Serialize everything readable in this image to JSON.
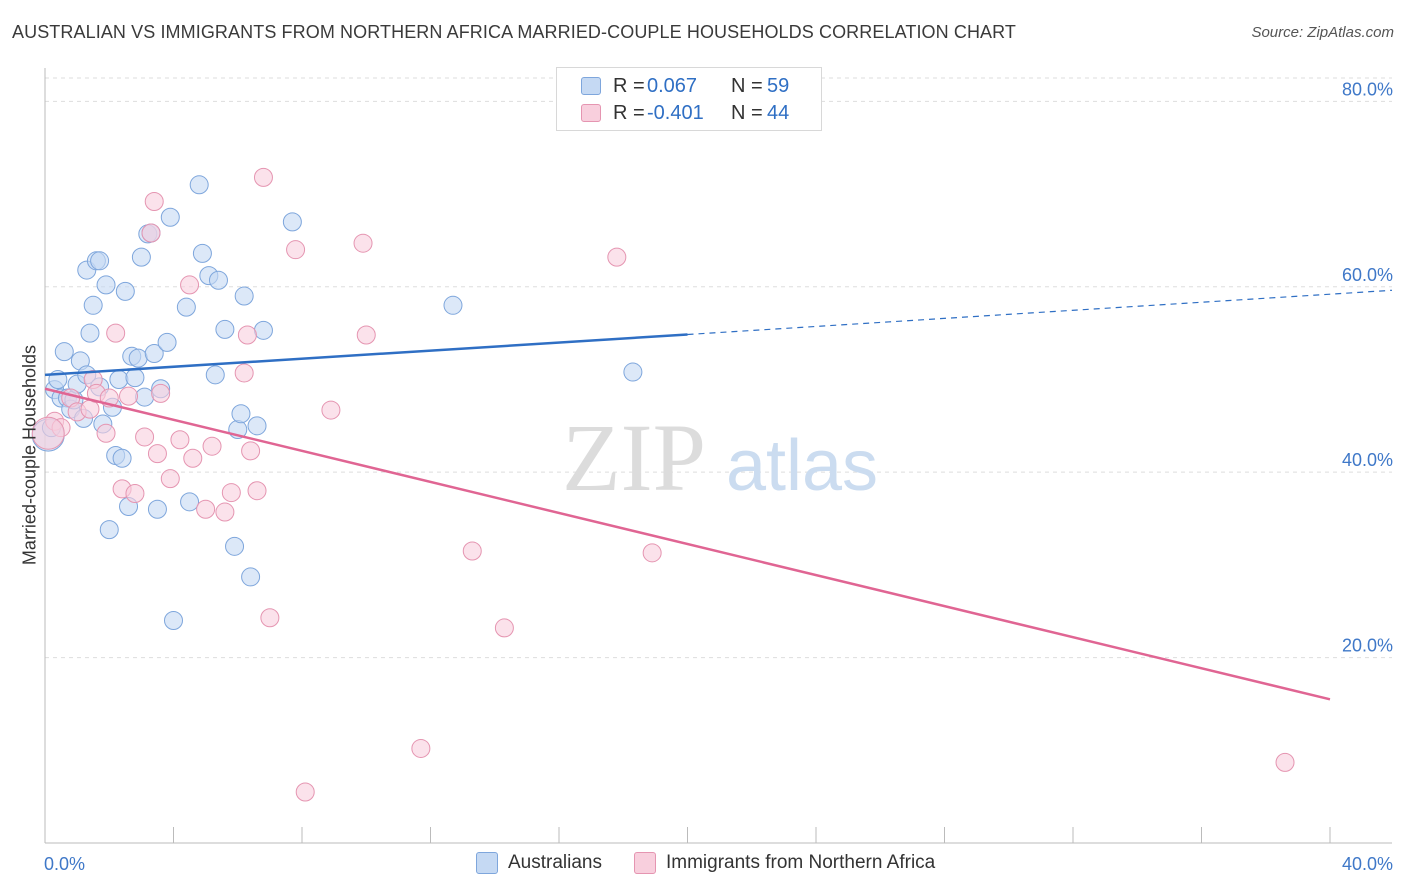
{
  "title": "AUSTRALIAN VS IMMIGRANTS FROM NORTHERN AFRICA MARRIED-COUPLE HOUSEHOLDS CORRELATION CHART",
  "source": "Source: ZipAtlas.com",
  "watermark": {
    "zip": "ZIP",
    "atlas": "atlas"
  },
  "legend": {
    "rows": [
      {
        "r_label": "R =",
        "r_value": "0.067",
        "n_label": "N =",
        "n_value": "59"
      },
      {
        "r_label": "R =",
        "r_value": "-0.401",
        "n_label": "N =",
        "n_value": "44"
      }
    ]
  },
  "bottom_legend": [
    "Australians",
    "Immigrants from Northern Africa"
  ],
  "colors": {
    "blue_fill": "#c5d9f3",
    "blue_stroke": "#7ea6dc",
    "blue_line": "#2f6fc4",
    "pink_fill": "#f8cfdd",
    "pink_stroke": "#e595b1",
    "pink_line": "#e06593",
    "tick_text": "#3f78c8",
    "grid": "#dddddd"
  },
  "chart_data": {
    "type": "scatter",
    "xlabel": "",
    "ylabel": "Married-couple Households",
    "xlim": [
      0,
      40
    ],
    "ylim": [
      0,
      85
    ],
    "x_tick_labels": [
      "0.0%",
      "40.0%"
    ],
    "y_ticks": [
      20,
      40,
      60,
      80
    ],
    "y_tick_labels": [
      "20.0%",
      "40.0%",
      "60.0%",
      "80.0%"
    ],
    "grid": true,
    "series": [
      {
        "name": "Australians",
        "color": "#7ea6dc",
        "trend": {
          "x": [
            0,
            20,
            40
          ],
          "y": [
            50.5,
            54.8,
            59.2
          ],
          "solid_until_x": 20
        },
        "points": [
          [
            0.1,
            44.0
          ],
          [
            0.2,
            44.8
          ],
          [
            0.3,
            48.9
          ],
          [
            0.4,
            50.0
          ],
          [
            0.5,
            48.0
          ],
          [
            0.6,
            53.0
          ],
          [
            0.7,
            48.0
          ],
          [
            0.8,
            46.8
          ],
          [
            0.9,
            47.8
          ],
          [
            1.0,
            49.5
          ],
          [
            1.1,
            52.0
          ],
          [
            1.2,
            45.8
          ],
          [
            1.3,
            50.5
          ],
          [
            1.3,
            61.8
          ],
          [
            1.4,
            55.0
          ],
          [
            1.5,
            58.0
          ],
          [
            1.6,
            62.8
          ],
          [
            1.7,
            49.2
          ],
          [
            1.7,
            62.8
          ],
          [
            1.8,
            45.2
          ],
          [
            1.9,
            60.2
          ],
          [
            2.0,
            33.8
          ],
          [
            2.1,
            47.0
          ],
          [
            2.2,
            41.8
          ],
          [
            2.3,
            50.0
          ],
          [
            2.4,
            41.5
          ],
          [
            2.5,
            59.5
          ],
          [
            2.6,
            36.3
          ],
          [
            2.7,
            52.5
          ],
          [
            2.8,
            50.2
          ],
          [
            2.9,
            52.3
          ],
          [
            3.0,
            63.2
          ],
          [
            3.1,
            48.1
          ],
          [
            3.2,
            65.7
          ],
          [
            3.3,
            65.8
          ],
          [
            3.4,
            52.8
          ],
          [
            3.5,
            36.0
          ],
          [
            3.6,
            49.0
          ],
          [
            3.8,
            54.0
          ],
          [
            3.9,
            67.5
          ],
          [
            4.0,
            24.0
          ],
          [
            4.4,
            57.8
          ],
          [
            4.5,
            36.8
          ],
          [
            4.8,
            71.0
          ],
          [
            4.9,
            63.6
          ],
          [
            5.1,
            61.2
          ],
          [
            5.3,
            50.5
          ],
          [
            5.4,
            60.7
          ],
          [
            5.6,
            55.4
          ],
          [
            5.9,
            32.0
          ],
          [
            6.0,
            44.6
          ],
          [
            6.1,
            46.3
          ],
          [
            6.2,
            59.0
          ],
          [
            6.4,
            28.7
          ],
          [
            6.6,
            45.0
          ],
          [
            6.8,
            55.3
          ],
          [
            7.7,
            67.0
          ],
          [
            12.7,
            58.0
          ],
          [
            18.3,
            50.8
          ]
        ]
      },
      {
        "name": "Immigrants from Northern Africa",
        "color": "#e595b1",
        "trend": {
          "x": [
            0,
            40
          ],
          "y": [
            49.0,
            15.5
          ]
        },
        "points": [
          [
            0.3,
            45.5
          ],
          [
            0.5,
            44.8
          ],
          [
            0.8,
            48.0
          ],
          [
            1.0,
            46.5
          ],
          [
            1.4,
            46.8
          ],
          [
            1.5,
            50.0
          ],
          [
            1.6,
            48.5
          ],
          [
            1.9,
            44.2
          ],
          [
            2.0,
            48.0
          ],
          [
            2.2,
            55.0
          ],
          [
            2.4,
            38.2
          ],
          [
            2.6,
            48.2
          ],
          [
            2.8,
            37.7
          ],
          [
            3.1,
            43.8
          ],
          [
            3.3,
            65.8
          ],
          [
            3.4,
            69.2
          ],
          [
            3.5,
            42.0
          ],
          [
            3.6,
            48.5
          ],
          [
            3.9,
            39.3
          ],
          [
            4.2,
            43.5
          ],
          [
            4.5,
            60.2
          ],
          [
            4.6,
            41.5
          ],
          [
            5.0,
            36.0
          ],
          [
            5.2,
            42.8
          ],
          [
            5.6,
            35.7
          ],
          [
            5.8,
            37.8
          ],
          [
            6.2,
            50.7
          ],
          [
            6.3,
            54.8
          ],
          [
            6.4,
            42.3
          ],
          [
            6.6,
            38.0
          ],
          [
            6.8,
            71.8
          ],
          [
            7.0,
            24.3
          ],
          [
            7.8,
            64.0
          ],
          [
            8.9,
            46.7
          ],
          [
            9.9,
            64.7
          ],
          [
            10.0,
            54.8
          ],
          [
            11.7,
            10.2
          ],
          [
            13.3,
            31.5
          ],
          [
            14.3,
            23.2
          ],
          [
            8.1,
            5.5
          ],
          [
            17.8,
            63.2
          ],
          [
            18.9,
            31.3
          ],
          [
            38.6,
            8.7
          ],
          [
            0.1,
            44.2
          ]
        ]
      }
    ]
  }
}
